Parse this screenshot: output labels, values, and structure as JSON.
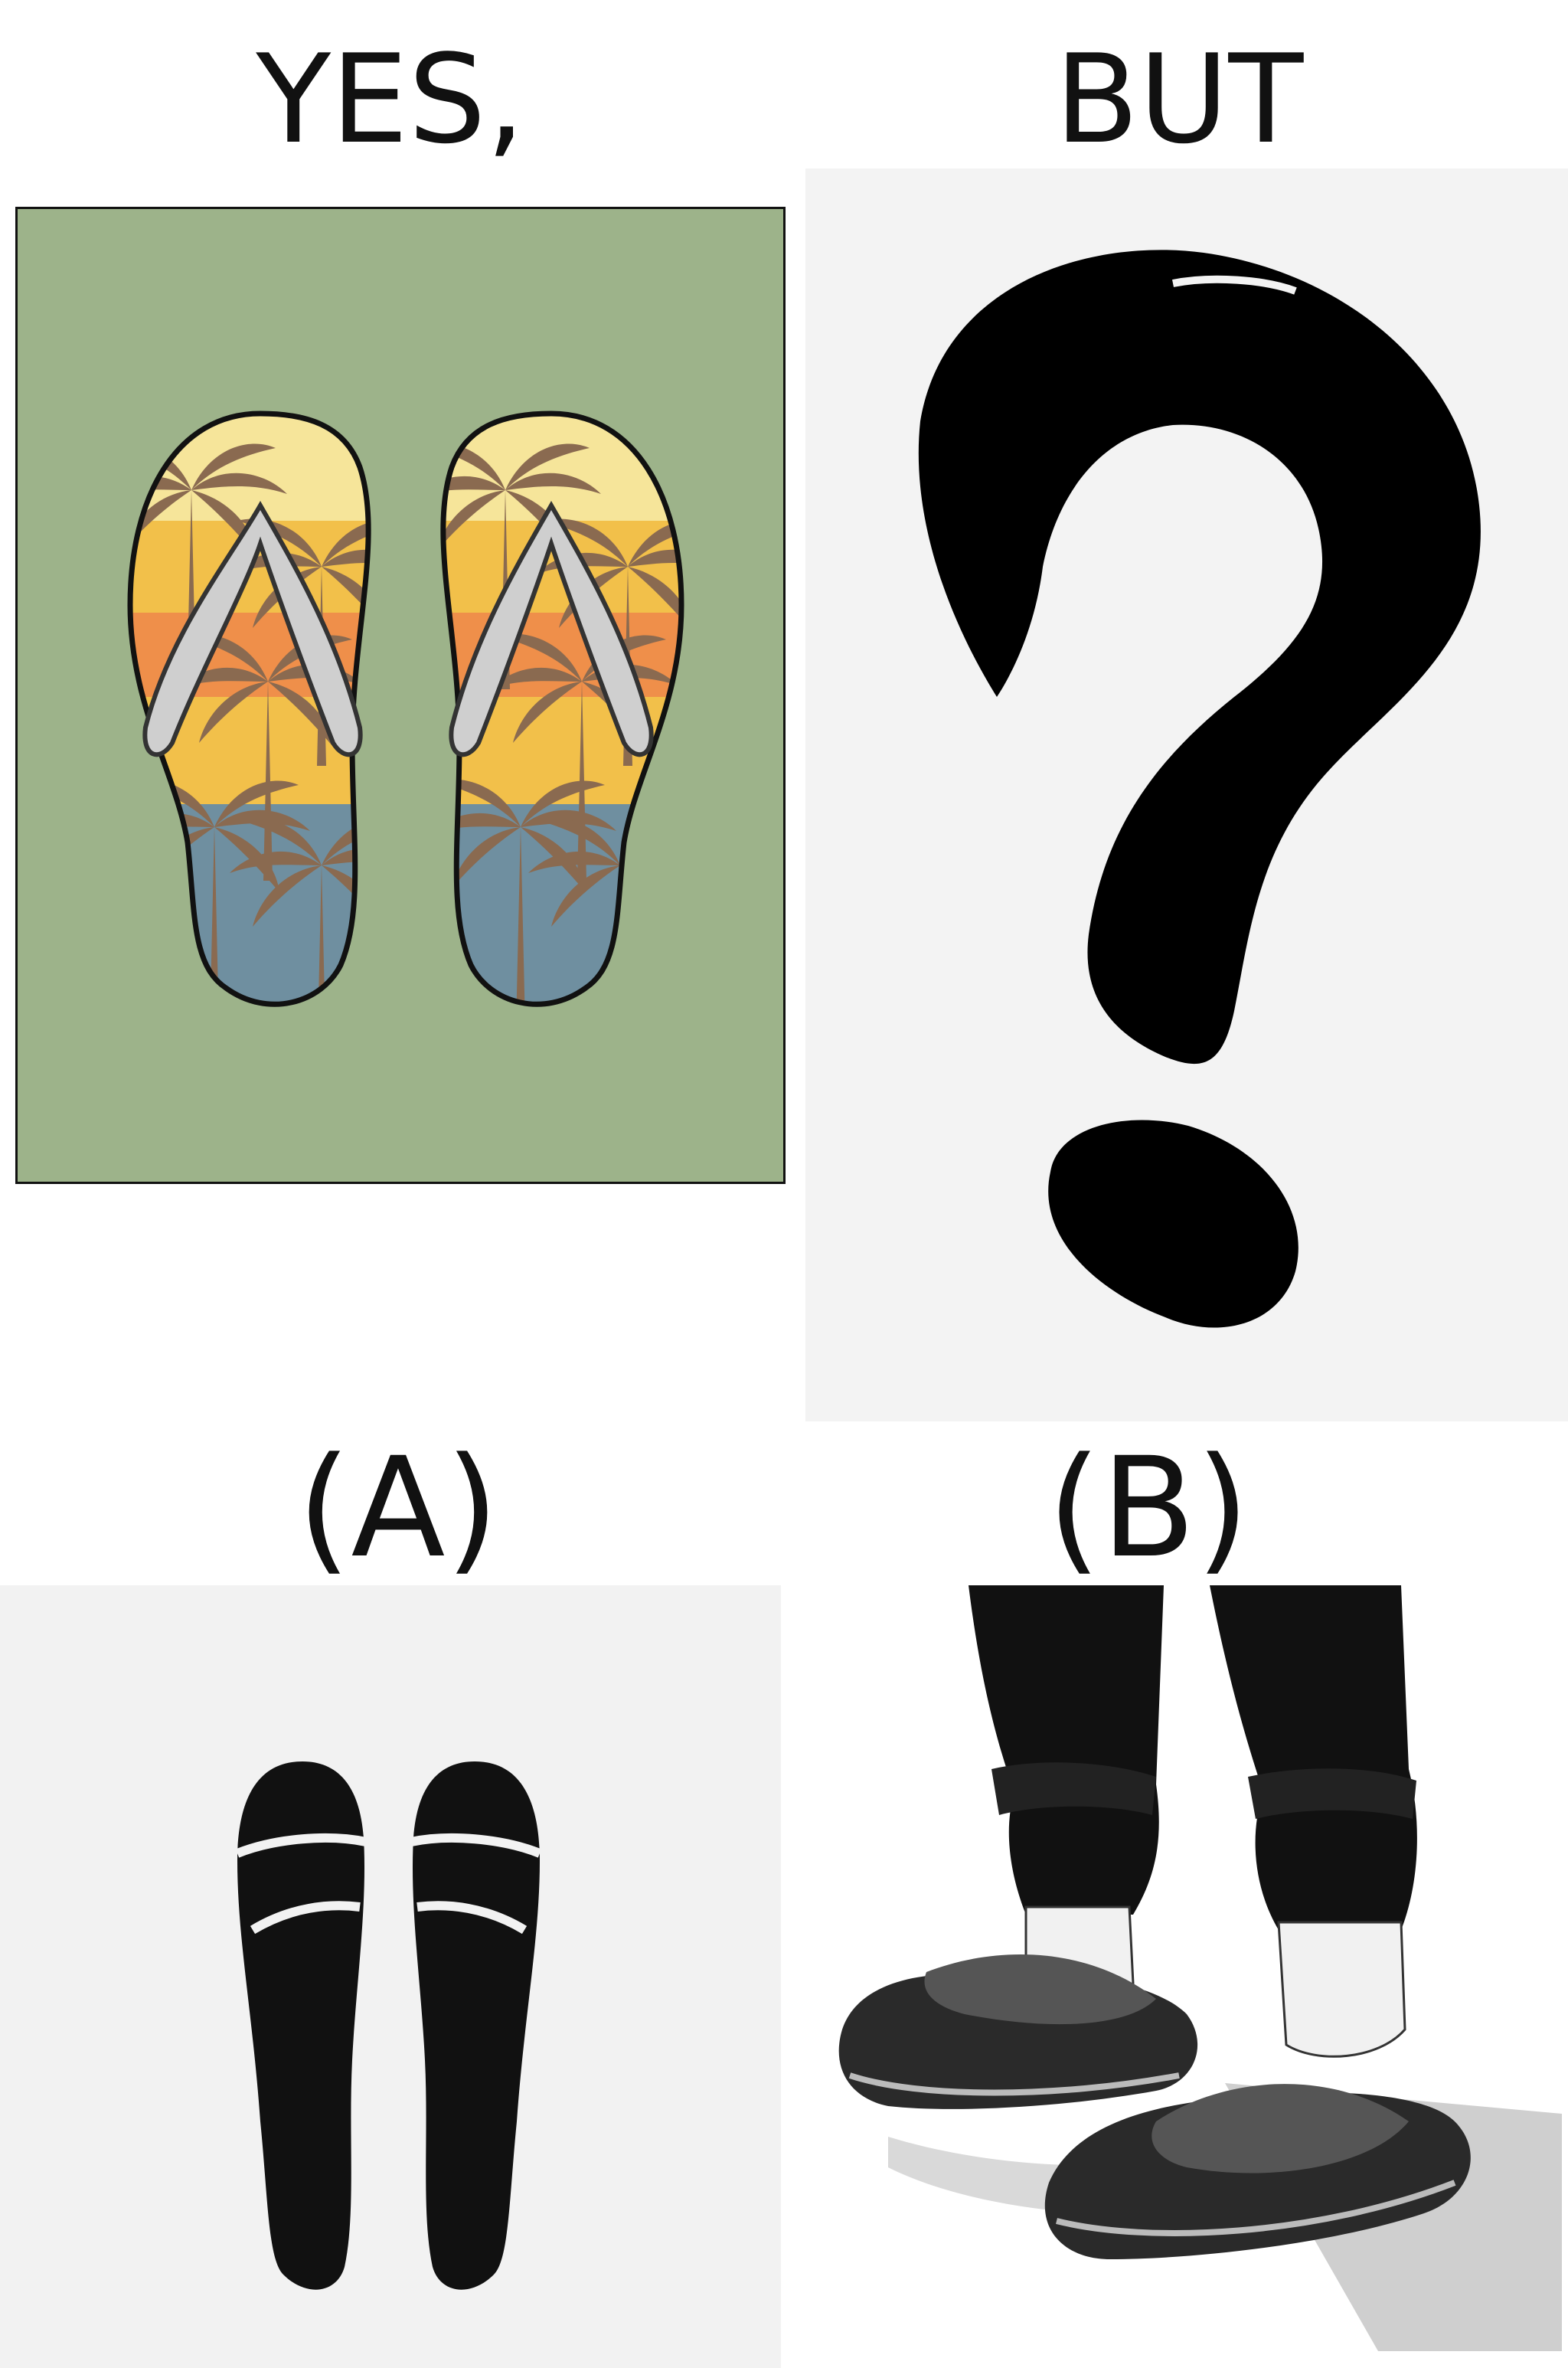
{
  "labels": {
    "yes": "YES,",
    "but": "BUT",
    "option_a": "(A)",
    "option_b": "(B)"
  },
  "panels": {
    "yes_panel": {
      "subject": "flip-flops with palm tree sunset print",
      "background": "#9db38a"
    },
    "but_panel": {
      "subject": "question mark",
      "background": "#f3f3f3"
    },
    "option_a_panel": {
      "subject": "pair of black slide sandals icon",
      "background": "#f2f2f2"
    },
    "option_b_panel": {
      "subject": "legs in black trousers wearing socks with slide sandals",
      "background": "#ffffff"
    }
  },
  "colors": {
    "sky_yellow": "#f6e59a",
    "band_gold": "#f2c04a",
    "band_orange": "#ef8f4a",
    "sea_blue": "#6f8fa0",
    "palm_brown": "#8a6a50",
    "strap_grey": "#cfcfcf",
    "ink": "#000000"
  }
}
